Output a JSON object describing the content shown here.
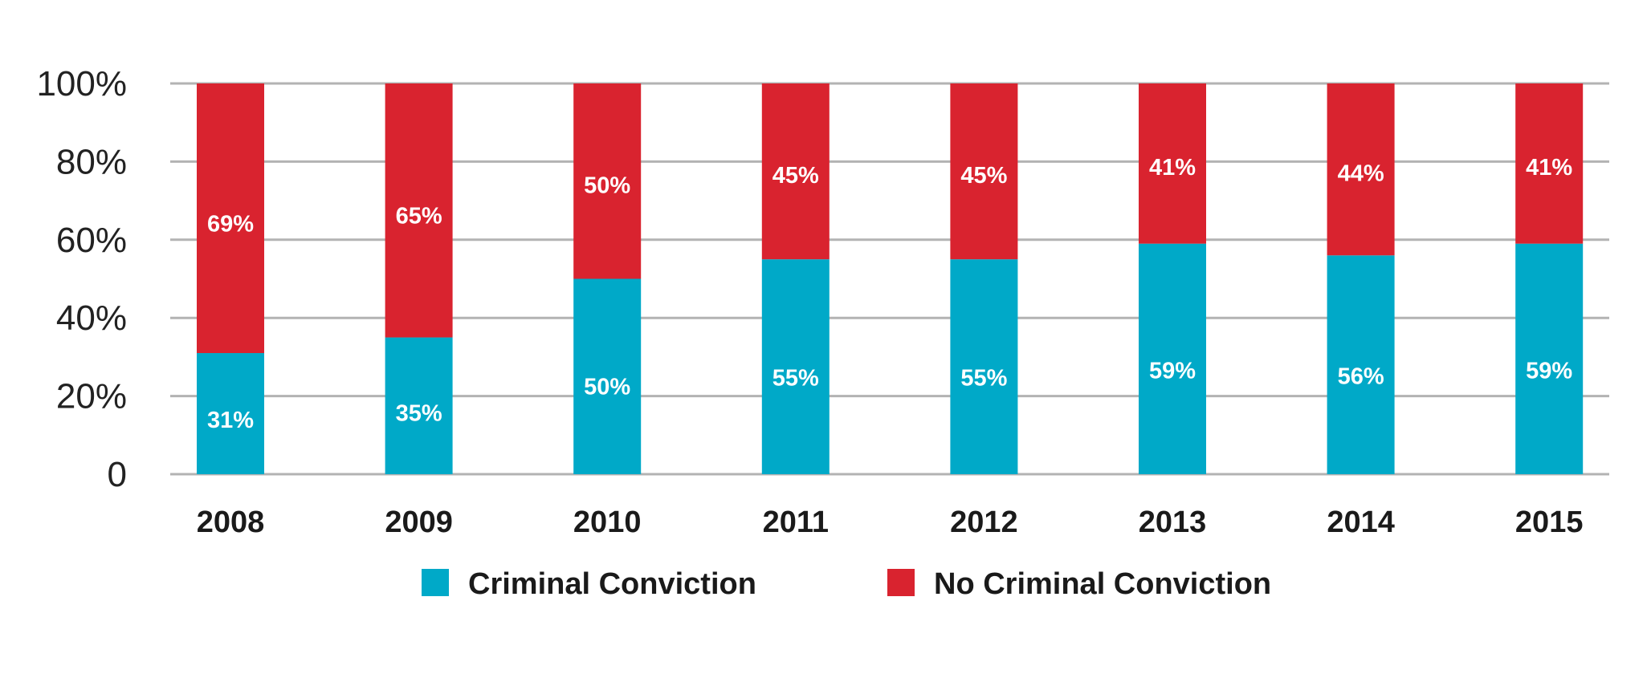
{
  "chart_data": {
    "type": "bar",
    "stacked": true,
    "categories": [
      "2008",
      "2009",
      "2010",
      "2011",
      "2012",
      "2013",
      "2014",
      "2015"
    ],
    "series": [
      {
        "name": "Criminal Conviction",
        "color": "#00A9C8",
        "values": [
          31,
          35,
          50,
          55,
          55,
          59,
          56,
          59
        ],
        "labels": [
          "31%",
          "35%",
          "50%",
          "55%",
          "55%",
          "59%",
          "56%",
          "59%"
        ]
      },
      {
        "name": "No Criminal Conviction",
        "color": "#D9232F",
        "values": [
          69,
          65,
          50,
          45,
          45,
          41,
          44,
          41
        ],
        "labels": [
          "69%",
          "65%",
          "50%",
          "45%",
          "45%",
          "41%",
          "44%",
          "41%"
        ]
      }
    ],
    "yticks": [
      "0",
      "20%",
      "40%",
      "60%",
      "80%",
      "100%"
    ],
    "ylim": [
      0,
      100
    ],
    "title": "",
    "xlabel": "",
    "ylabel": "",
    "grid": true,
    "legend_position": "bottom"
  }
}
